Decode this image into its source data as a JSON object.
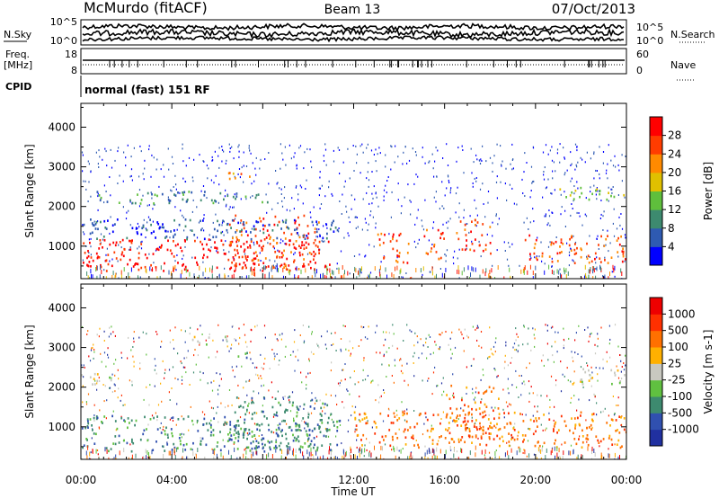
{
  "header": {
    "title": "McMurdo (fitACF)",
    "beam": "Beam 13",
    "date": "07/Oct/2013"
  },
  "panels": {
    "nsky": {
      "left_label": "N.Sky",
      "right_label": "N.Search",
      "left_ticks": [
        "10^5",
        "10^0"
      ],
      "right_ticks": [
        "10^5",
        "10^0"
      ]
    },
    "freq": {
      "left_label_1": "Freq.",
      "left_label_2": "[MHz]",
      "left_ticks": [
        "18",
        "8"
      ],
      "right_label": "Nave",
      "right_ticks": [
        "60",
        "0"
      ]
    },
    "cpid": {
      "label": "CPID",
      "text": "normal (fast) 151 RF"
    }
  },
  "chart_data": [
    {
      "type": "heatmap",
      "name": "power",
      "ylabel": "Slant Range [km]",
      "xlabel": "",
      "xlim": [
        "00:00",
        "24:00"
      ],
      "ylim": [
        180,
        4600
      ],
      "y_ticks": [
        1000,
        2000,
        3000,
        4000
      ],
      "colorbar": {
        "label": "Power [dB]",
        "ticks": [
          "4",
          "8",
          "12",
          "16",
          "20",
          "24",
          "28"
        ],
        "colors": [
          "#0000ff",
          "#2e5ab2",
          "#3d8a6f",
          "#5fbf3c",
          "#e0c000",
          "#ff8a00",
          "#ff3c00",
          "#ff0000"
        ]
      },
      "regions": [
        {
          "t0": 0.0,
          "t1": 11.0,
          "r0": 400,
          "r1": 1200,
          "level": 7
        },
        {
          "t0": 6.5,
          "t1": 10.5,
          "r0": 400,
          "r1": 1800,
          "level": 6
        },
        {
          "t0": 0.0,
          "t1": 11.5,
          "r0": 1200,
          "r1": 1700,
          "level": 1
        },
        {
          "t0": 0.5,
          "t1": 8.5,
          "r0": 2100,
          "r1": 2400,
          "level": 2
        },
        {
          "t0": 6.0,
          "t1": 7.5,
          "r0": 2700,
          "r1": 2900,
          "level": 5
        },
        {
          "t0": 13.0,
          "t1": 14.5,
          "r0": 600,
          "r1": 1400,
          "level": 6
        },
        {
          "t0": 15.0,
          "t1": 16.0,
          "r0": 700,
          "r1": 1500,
          "level": 6
        },
        {
          "t0": 16.5,
          "t1": 18.0,
          "r0": 800,
          "r1": 1700,
          "level": 6
        },
        {
          "t0": 19.5,
          "t1": 24.0,
          "r0": 600,
          "r1": 1300,
          "level": 6
        },
        {
          "t0": 21.0,
          "t1": 24.0,
          "r0": 2200,
          "r1": 2500,
          "level": 3
        }
      ]
    },
    {
      "type": "heatmap",
      "name": "velocity",
      "ylabel": "Slant Range [km]",
      "xlabel": "Time UT",
      "x_ticks": [
        "00:00",
        "04:00",
        "08:00",
        "12:00",
        "16:00",
        "20:00",
        "00:00"
      ],
      "xlim": [
        "00:00",
        "24:00"
      ],
      "ylim": [
        180,
        4600
      ],
      "y_ticks": [
        1000,
        2000,
        3000,
        4000
      ],
      "colorbar": {
        "label": "Velocity [m s-1]",
        "ticks": [
          "1000",
          "500",
          "100",
          "25",
          "-25",
          "-100",
          "-500",
          "-1000"
        ],
        "colors": [
          "#2030a0",
          "#3050b0",
          "#3d8a6f",
          "#60c040",
          "#c8c8c0",
          "#ffb000",
          "#ff7000",
          "#ff3000",
          "#ee0000"
        ]
      },
      "regions": [
        {
          "t0": 0.0,
          "t1": 11.5,
          "r0": 400,
          "r1": 1300,
          "level": 2
        },
        {
          "t0": 6.5,
          "t1": 11.0,
          "r0": 400,
          "r1": 1800,
          "level": 2
        },
        {
          "t0": 0.0,
          "t1": 1.5,
          "r0": 2100,
          "r1": 2400,
          "level": 4
        },
        {
          "t0": 6.5,
          "t1": 7.5,
          "r0": 2700,
          "r1": 2900,
          "level": 2
        },
        {
          "t0": 4.5,
          "t1": 6.5,
          "r0": 3100,
          "r1": 3300,
          "level": 4
        },
        {
          "t0": 12.0,
          "t1": 24.0,
          "r0": 500,
          "r1": 1400,
          "level": 6
        },
        {
          "t0": 16.0,
          "t1": 18.5,
          "r0": 700,
          "r1": 2100,
          "level": 6
        },
        {
          "t0": 21.5,
          "t1": 24.0,
          "r0": 2100,
          "r1": 2500,
          "level": 4
        }
      ]
    }
  ]
}
